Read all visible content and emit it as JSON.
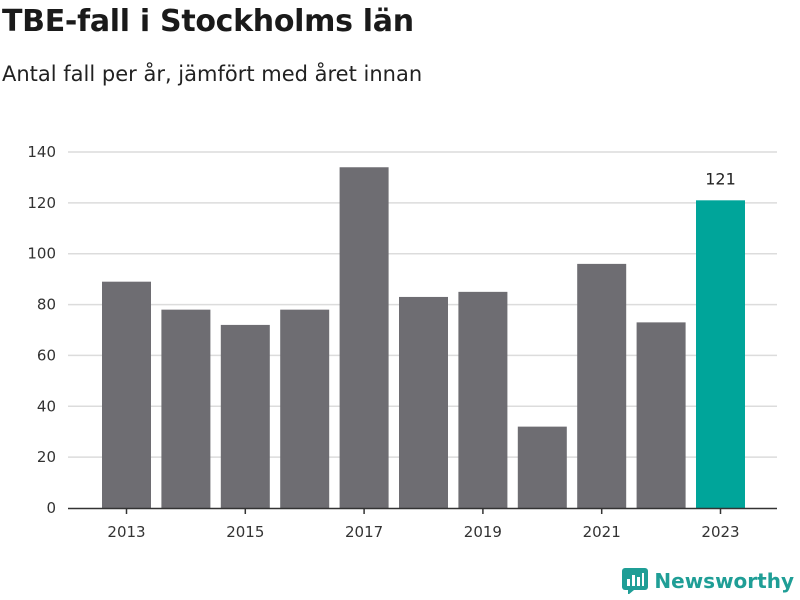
{
  "chart_data": {
    "type": "bar",
    "title": "TBE-fall i Stockholms län",
    "subtitle": "Antal fall per år, jämfört med året innan",
    "categories": [
      "2013",
      "2014",
      "2015",
      "2016",
      "2017",
      "2018",
      "2019",
      "2020",
      "2021",
      "2022",
      "2023"
    ],
    "values": [
      89,
      78,
      72,
      78,
      134,
      83,
      85,
      32,
      96,
      73,
      121
    ],
    "x_tick_labels": [
      "2013",
      "2015",
      "2017",
      "2019",
      "2021",
      "2023"
    ],
    "y_ticks": [
      0,
      20,
      40,
      60,
      80,
      100,
      120,
      140
    ],
    "ylim": [
      0,
      140
    ],
    "xlabel": "",
    "ylabel": "",
    "grid": true,
    "highlight": {
      "category": "2023",
      "label": "121"
    },
    "colors": {
      "bar": "#6e6d72",
      "highlight": "#00a59a",
      "grid": "#dcdcdc"
    }
  },
  "brand": {
    "name": "Newsworthy",
    "icon": "newsworthy-logo-icon",
    "color": "#1f9e96"
  }
}
